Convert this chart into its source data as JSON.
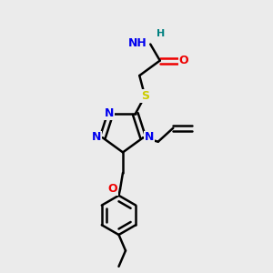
{
  "bg_color": "#ebebeb",
  "bond_color": "#000000",
  "atom_colors": {
    "N": "#0000ee",
    "O": "#ee0000",
    "S": "#cccc00",
    "H": "#008080",
    "C": "#000000"
  },
  "figsize": [
    3.0,
    3.0
  ],
  "dpi": 100
}
